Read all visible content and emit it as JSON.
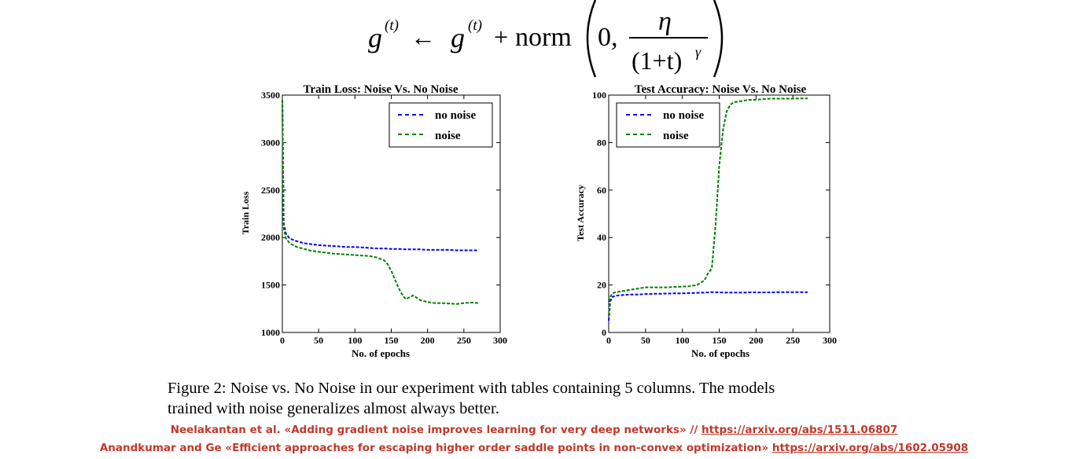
{
  "formula": {
    "g": "g",
    "t": "(t)",
    "arrow": "←",
    "plus": "+",
    "norm": "norm",
    "zero": "0,",
    "eta": "η",
    "denominator": "(1+t)",
    "gamma": "γ"
  },
  "chart_data": [
    {
      "type": "line",
      "title": "Train Loss: Noise Vs. No Noise",
      "xlabel": "No. of epochs",
      "ylabel": "Train Loss",
      "xlim": [
        0,
        300
      ],
      "ylim": [
        1000,
        3500
      ],
      "xticks": [
        "0",
        "50",
        "100",
        "150",
        "200",
        "250",
        "300"
      ],
      "yticks": [
        "1000",
        "1500",
        "2000",
        "2500",
        "3000",
        "3500"
      ],
      "grid": false,
      "legend": "top-right",
      "series": [
        {
          "name": "no noise",
          "color": "#0000ff",
          "x": [
            0,
            2,
            5,
            10,
            20,
            30,
            40,
            50,
            60,
            70,
            80,
            90,
            100,
            110,
            120,
            130,
            140,
            150,
            160,
            170,
            180,
            190,
            200,
            210,
            220,
            230,
            240,
            250,
            260,
            270
          ],
          "y": [
            3450,
            2150,
            2040,
            1990,
            1960,
            1940,
            1930,
            1920,
            1915,
            1910,
            1905,
            1900,
            1900,
            1895,
            1890,
            1885,
            1885,
            1880,
            1880,
            1875,
            1875,
            1875,
            1870,
            1870,
            1870,
            1870,
            1865,
            1865,
            1865,
            1865
          ]
        },
        {
          "name": "noise",
          "color": "#008000",
          "x": [
            0,
            2,
            5,
            10,
            20,
            30,
            40,
            50,
            60,
            70,
            80,
            90,
            100,
            110,
            120,
            130,
            140,
            145,
            150,
            155,
            160,
            165,
            170,
            175,
            180,
            190,
            200,
            210,
            220,
            230,
            240,
            250,
            260,
            270
          ],
          "y": [
            3450,
            2100,
            1990,
            1940,
            1900,
            1880,
            1860,
            1850,
            1840,
            1830,
            1825,
            1820,
            1815,
            1810,
            1805,
            1790,
            1760,
            1720,
            1650,
            1560,
            1470,
            1400,
            1350,
            1370,
            1390,
            1340,
            1320,
            1310,
            1310,
            1305,
            1300,
            1310,
            1315,
            1310
          ]
        }
      ]
    },
    {
      "type": "line",
      "title": "Test Accuracy: Noise Vs. No Noise",
      "xlabel": "No. of epochs",
      "ylabel": "Test Accuracy",
      "xlim": [
        0,
        300
      ],
      "ylim": [
        0,
        100
      ],
      "xticks": [
        "0",
        "50",
        "100",
        "150",
        "200",
        "250",
        "300"
      ],
      "yticks": [
        "0",
        "20",
        "40",
        "60",
        "80",
        "100"
      ],
      "grid": false,
      "legend": "top-left",
      "series": [
        {
          "name": "no noise",
          "color": "#0000ff",
          "x": [
            0,
            2,
            5,
            10,
            20,
            30,
            40,
            50,
            60,
            70,
            80,
            90,
            100,
            110,
            120,
            130,
            140,
            150,
            160,
            170,
            180,
            190,
            200,
            210,
            220,
            230,
            240,
            250,
            260,
            270
          ],
          "y": [
            5,
            13,
            15,
            15.5,
            15.8,
            16,
            16,
            16.2,
            16.3,
            16.3,
            16.4,
            16.5,
            16.5,
            16.6,
            16.7,
            16.8,
            17,
            16.9,
            16.8,
            16.8,
            16.8,
            16.9,
            16.9,
            16.9,
            16.9,
            17,
            17,
            17,
            17,
            17
          ]
        },
        {
          "name": "noise",
          "color": "#008000",
          "x": [
            0,
            2,
            5,
            10,
            20,
            30,
            40,
            50,
            60,
            70,
            80,
            90,
            100,
            110,
            120,
            130,
            135,
            140,
            145,
            150,
            155,
            160,
            165,
            170,
            180,
            190,
            200,
            210,
            220,
            230,
            240,
            250,
            260,
            270
          ],
          "y": [
            7,
            15,
            16.5,
            17,
            17.5,
            18,
            18.5,
            19,
            19,
            19,
            19,
            19.2,
            19.3,
            19.5,
            20,
            22,
            25,
            27,
            45,
            70,
            85,
            93,
            96,
            97,
            97.5,
            98,
            98,
            98.3,
            98.5,
            98.5,
            98.5,
            98.5,
            98.6,
            98.6
          ]
        }
      ]
    }
  ],
  "caption": {
    "line1": "Figure 2: Noise vs. No Noise in our experiment with tables containing 5 columns. The models",
    "line2": "trained with noise generalizes almost always better."
  },
  "references": {
    "ref1_text": "Neelakantan et al. «Adding gradient noise improves learning for very deep networks» // ",
    "ref1_link": "https://arxiv.org/abs/1511.06807",
    "ref2_text": "Anandkumar and Ge «Efficient approaches for escaping higher order saddle points in non-convex optimization» ",
    "ref2_link": "https://arxiv.org/abs/1602.05908"
  }
}
